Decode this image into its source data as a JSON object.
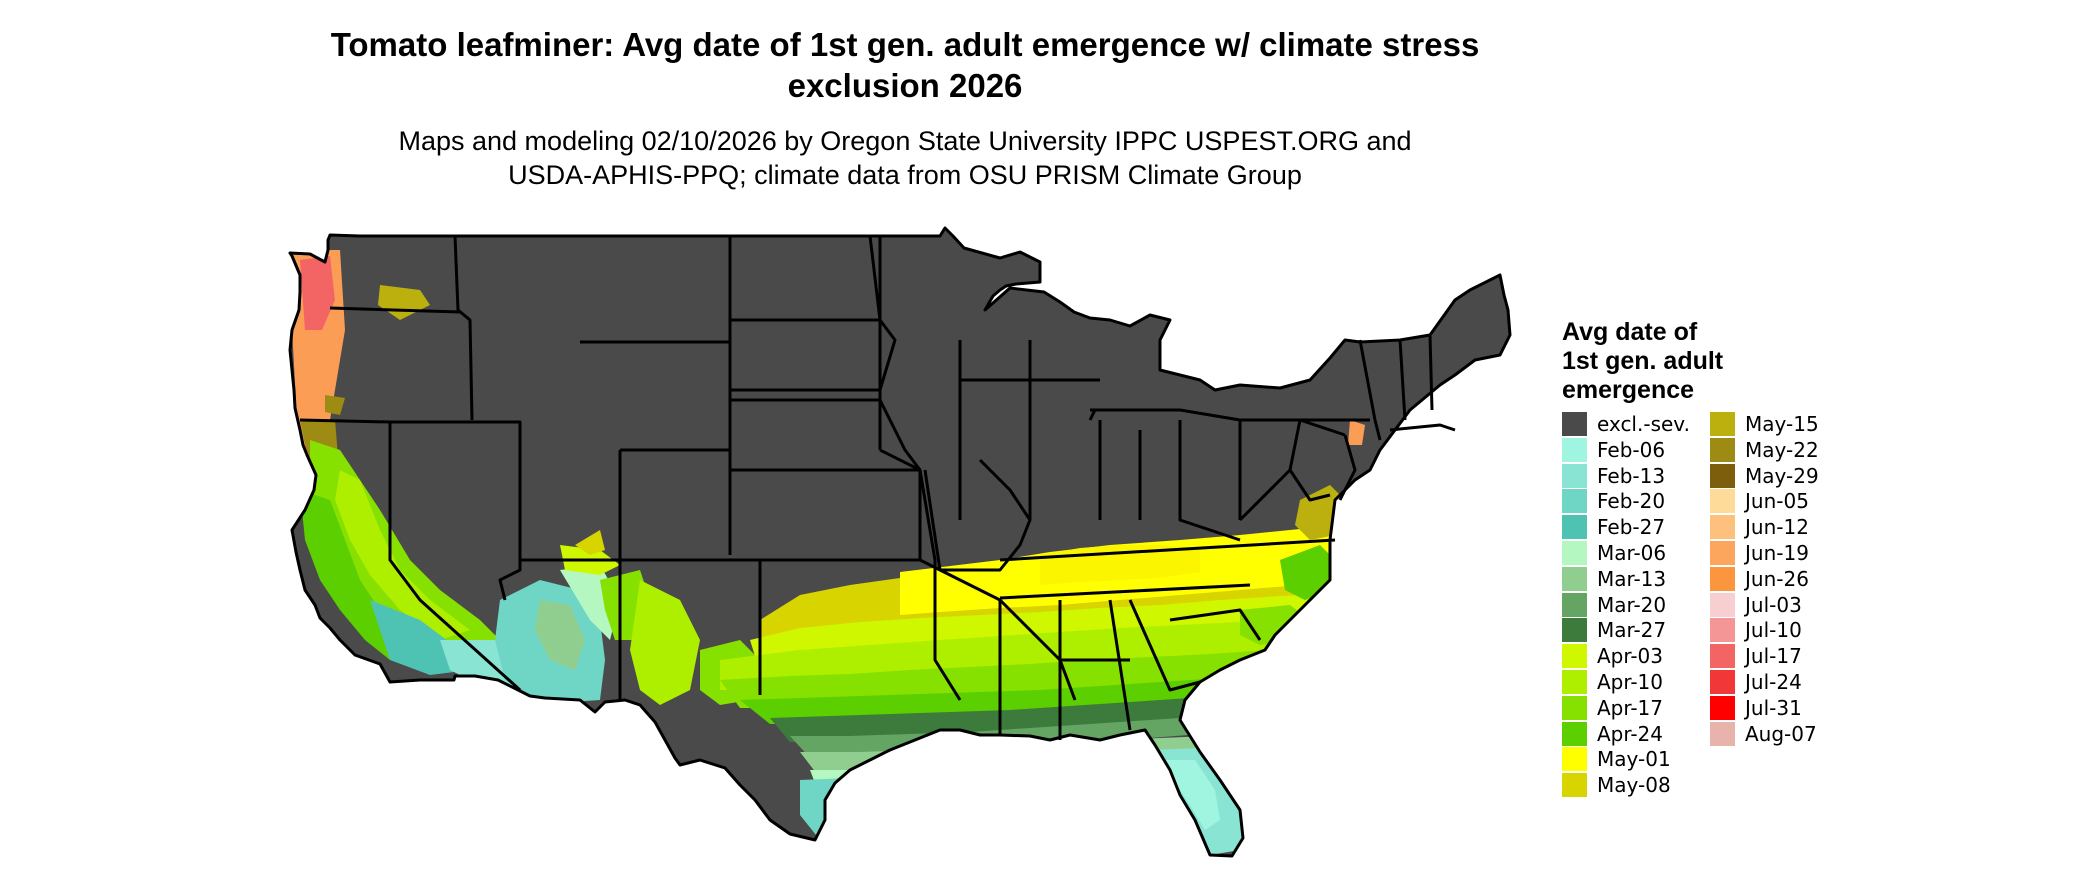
{
  "title": "Tomato leafminer: Avg date of 1st gen. adult emergence w/ climate stress exclusion 2026",
  "subtitle_lines": [
    "Maps and modeling 02/10/2026 by Oregon State University IPPC USPEST.ORG and",
    "USDA-APHIS-PPQ; climate data from OSU PRISM Climate Group"
  ],
  "legend": {
    "title_lines": [
      "Avg date of",
      "1st gen. adult",
      "emergence"
    ],
    "items": [
      {
        "label": "excl.-sev.",
        "color": "#4a4a4a"
      },
      {
        "label": "Feb-06",
        "color": "#9ff5df"
      },
      {
        "label": "Feb-13",
        "color": "#8ae4d3"
      },
      {
        "label": "Feb-20",
        "color": "#6fd6c5"
      },
      {
        "label": "Feb-27",
        "color": "#4fc3b3"
      },
      {
        "label": "Mar-06",
        "color": "#b5f7c0"
      },
      {
        "label": "Mar-13",
        "color": "#8fce8f"
      },
      {
        "label": "Mar-20",
        "color": "#64a564"
      },
      {
        "label": "Mar-27",
        "color": "#3c7b3c"
      },
      {
        "label": "Apr-03",
        "color": "#cef700"
      },
      {
        "label": "Apr-10",
        "color": "#aeef00"
      },
      {
        "label": "Apr-17",
        "color": "#86e000"
      },
      {
        "label": "Apr-24",
        "color": "#5ccf00"
      },
      {
        "label": "May-01",
        "color": "#ffff00"
      },
      {
        "label": "May-08",
        "color": "#d8d400"
      },
      {
        "label": "May-15",
        "color": "#bcb00e"
      },
      {
        "label": "May-22",
        "color": "#9d8b13"
      },
      {
        "label": "May-29",
        "color": "#7c5e0c"
      },
      {
        "label": "Jun-05",
        "color": "#fedb99"
      },
      {
        "label": "Jun-12",
        "color": "#fec17d"
      },
      {
        "label": "Jun-19",
        "color": "#fca65d"
      },
      {
        "label": "Jun-26",
        "color": "#fb963e"
      },
      {
        "label": "Jul-03",
        "color": "#f7cfd0"
      },
      {
        "label": "Jul-10",
        "color": "#f49696"
      },
      {
        "label": "Jul-17",
        "color": "#f36464"
      },
      {
        "label": "Jul-24",
        "color": "#f13737"
      },
      {
        "label": "Jul-31",
        "color": "#ff0000"
      },
      {
        "label": "Aug-07",
        "color": "#e8b3aa"
      }
    ]
  }
}
